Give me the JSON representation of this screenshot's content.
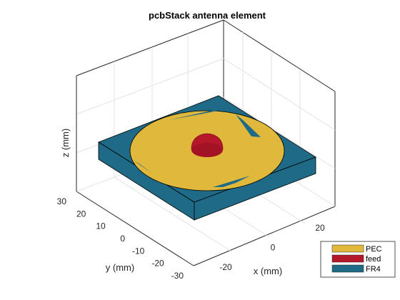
{
  "chart_data": {
    "type": "3d-geometry",
    "title": "pcbStack antenna element",
    "xlabel": "x (mm)",
    "ylabel": "y (mm)",
    "zlabel": "z (mm)",
    "x_ticks": [
      "-20",
      "0",
      "20"
    ],
    "y_ticks": [
      "30",
      "20",
      "10",
      "0",
      "-10",
      "-20",
      "-30"
    ],
    "xlim": [
      -30,
      30
    ],
    "ylim": [
      -30,
      30
    ],
    "grid": true,
    "legend_position": "bottom-right",
    "legend": [
      {
        "name": "PEC",
        "color": "#E0B83C"
      },
      {
        "name": "feed",
        "color": "#B5172B"
      },
      {
        "name": "FR4",
        "color": "#1F6B87"
      }
    ],
    "series": [
      {
        "name": "FR4",
        "shape": "box",
        "color": "#1F6B87"
      },
      {
        "name": "PEC",
        "shape": "disc-patch",
        "color": "#E0B83C"
      },
      {
        "name": "feed",
        "shape": "dome",
        "color": "#B5172B"
      }
    ]
  }
}
